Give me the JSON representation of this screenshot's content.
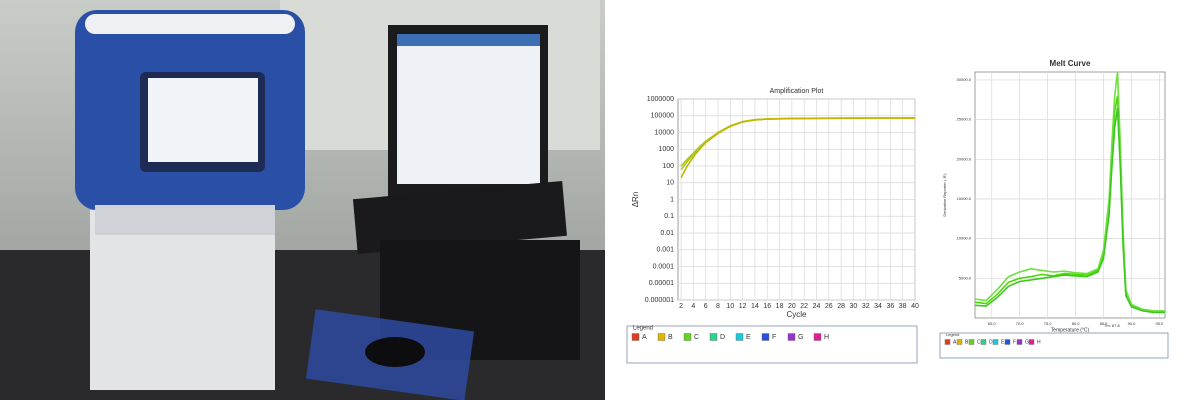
{
  "chart_data": [
    {
      "type": "line",
      "title": "Amplification Plot",
      "x_label": "Cycle",
      "y_label": "ΔRn",
      "log_scale": true,
      "grid": true,
      "xlim": [
        1.5,
        40
      ],
      "xticks": [
        2,
        4,
        6,
        8,
        10,
        12,
        14,
        16,
        18,
        20,
        22,
        24,
        26,
        28,
        30,
        32,
        34,
        36,
        38,
        40
      ],
      "ylim": [
        1e-06,
        1000000
      ],
      "yticks": [
        1e-06,
        1e-05,
        0.0001,
        0.001,
        0.01,
        0.1,
        1,
        10,
        100,
        1000,
        10000,
        100000,
        1000000
      ],
      "x": [
        2,
        3,
        4,
        5,
        6,
        8,
        10,
        12,
        14,
        16,
        20,
        25,
        30,
        35,
        40
      ],
      "series": [
        {
          "color": "#b8c400",
          "values": [
            100,
            250,
            600,
            1400,
            3000,
            10000,
            25000,
            45000,
            58000,
            65000,
            69000,
            71000,
            72000,
            72500,
            73000
          ]
        },
        {
          "color": "#9acd32",
          "values": [
            60,
            180,
            500,
            1200,
            2800,
            9500,
            24000,
            44000,
            57000,
            64000,
            68000,
            70000,
            71000,
            71500,
            72000
          ]
        },
        {
          "color": "#c8b400",
          "values": [
            20,
            100,
            350,
            1000,
            2500,
            9000,
            23000,
            43000,
            56000,
            63000,
            68000,
            70500,
            71500,
            72000,
            72500
          ]
        }
      ],
      "legend_title": "Legend",
      "legend": [
        {
          "name": "A",
          "color": "#e03c1e"
        },
        {
          "name": "B",
          "color": "#e0b400"
        },
        {
          "name": "C",
          "color": "#66d21e"
        },
        {
          "name": "D",
          "color": "#2ed28c"
        },
        {
          "name": "E",
          "color": "#1ec8dc"
        },
        {
          "name": "F",
          "color": "#2850dc"
        },
        {
          "name": "G",
          "color": "#9632c8"
        },
        {
          "name": "H",
          "color": "#e01e96"
        }
      ]
    },
    {
      "type": "line",
      "title": "Melt Curve",
      "x_label": "Temperature (°C)",
      "y_label": "Derivative Reporter (-R')",
      "log_scale": false,
      "grid": true,
      "annotation": "Tm: 87.6",
      "xlim": [
        62,
        96
      ],
      "xticks": [
        {
          "value": 65,
          "label": "65.0"
        },
        {
          "value": 70,
          "label": "70.0"
        },
        {
          "value": 75,
          "label": "75.0"
        },
        {
          "value": 80,
          "label": "80.0"
        },
        {
          "value": 85,
          "label": "85.0"
        },
        {
          "value": 90,
          "label": "90.0"
        },
        {
          "value": 95,
          "label": "95.0"
        }
      ],
      "ylim": [
        0,
        31000
      ],
      "yticks": [
        {
          "value": 5000,
          "label": "5000.0"
        },
        {
          "value": 10000,
          "label": "10000.0"
        },
        {
          "value": 15000,
          "label": "15000.0"
        },
        {
          "value": 20000,
          "label": "20000.0"
        },
        {
          "value": 25000,
          "label": "25000.0"
        },
        {
          "value": 30000,
          "label": "30000.0"
        }
      ],
      "x": [
        62,
        64,
        66,
        68,
        70,
        72,
        74,
        76,
        78,
        80,
        82,
        84,
        85,
        86,
        86.5,
        87,
        87.5,
        88,
        88.5,
        89,
        90,
        92,
        94,
        96
      ],
      "series": [
        {
          "color": "#4cd900",
          "values": [
            2000,
            1800,
            3000,
            4500,
            5000,
            5200,
            5500,
            5300,
            5600,
            5500,
            5400,
            6000,
            8000,
            14000,
            20000,
            26000,
            28000,
            20000,
            10000,
            3000,
            1500,
            1000,
            800,
            800
          ]
        },
        {
          "color": "#6ee040",
          "values": [
            2400,
            2200,
            3600,
            5200,
            5800,
            6200,
            6000,
            5800,
            5900,
            5700,
            5600,
            6200,
            8500,
            15000,
            22000,
            28000,
            31000,
            22000,
            11000,
            3500,
            1700,
            1100,
            900,
            900
          ]
        },
        {
          "color": "#3cc81e",
          "values": [
            1600,
            1500,
            2600,
            4000,
            4600,
            4800,
            5000,
            5200,
            5400,
            5300,
            5200,
            5800,
            7500,
            13000,
            19000,
            24000,
            26500,
            19000,
            9000,
            2800,
            1400,
            900,
            700,
            700
          ]
        }
      ],
      "legend_title": "Legend",
      "legend": [
        {
          "name": "A",
          "color": "#e03c1e"
        },
        {
          "name": "B",
          "color": "#e0b400"
        },
        {
          "name": "C",
          "color": "#66d21e"
        },
        {
          "name": "D",
          "color": "#2ed28c"
        },
        {
          "name": "E",
          "color": "#1ec8dc"
        },
        {
          "name": "F",
          "color": "#2850dc"
        },
        {
          "name": "G",
          "color": "#9632c8"
        },
        {
          "name": "H",
          "color": "#e01e96"
        }
      ]
    }
  ]
}
